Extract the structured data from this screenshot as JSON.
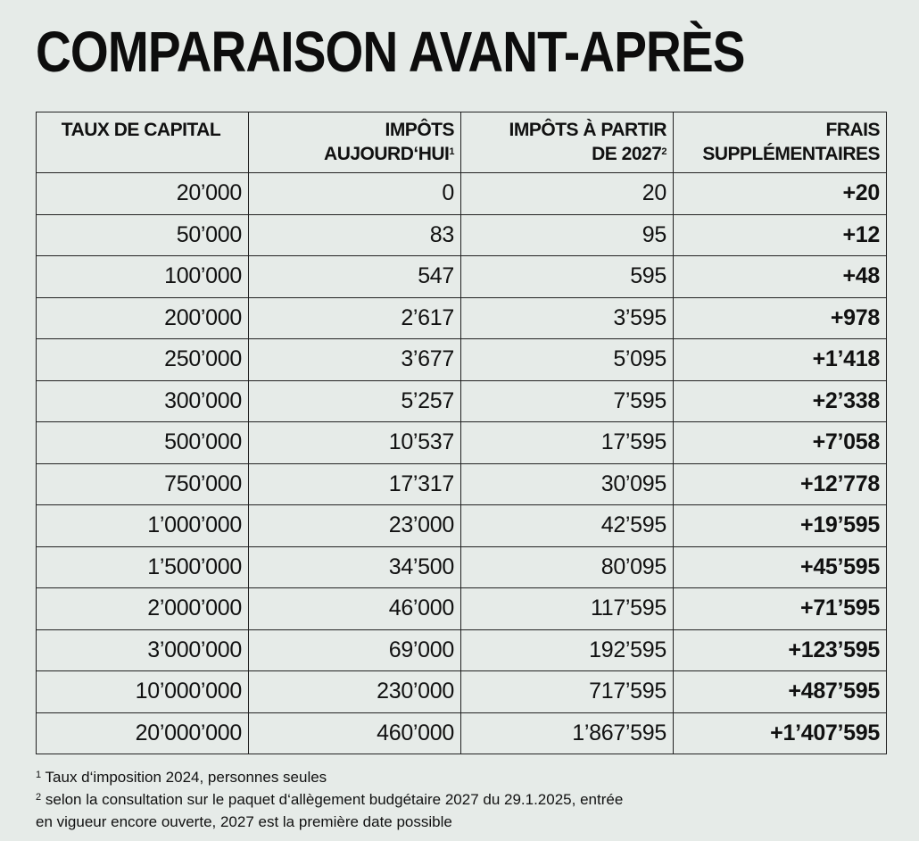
{
  "title": "COMPARAISON AVANT-APRÈS",
  "table": {
    "headers": [
      {
        "line1": "TAUX DE CAPITAL",
        "line2": "",
        "note": ""
      },
      {
        "line1": "IMPÔTS",
        "line2": "AUJOURD‘HUI",
        "note": "1"
      },
      {
        "line1": "IMPÔTS À PARTIR",
        "line2": "DE 2027",
        "note": "2"
      },
      {
        "line1": "FRAIS",
        "line2": "SUPPLÉMENTAIRES",
        "note": ""
      }
    ],
    "rows": [
      [
        "20’000",
        "0",
        "20",
        "+20"
      ],
      [
        "50’000",
        "83",
        "95",
        "+12"
      ],
      [
        "100’000",
        "547",
        "595",
        "+48"
      ],
      [
        "200’000",
        "2’617",
        "3’595",
        "+978"
      ],
      [
        "250’000",
        "3’677",
        "5’095",
        "+1’418"
      ],
      [
        "300’000",
        "5’257",
        "7’595",
        "+2’338"
      ],
      [
        "500’000",
        "10’537",
        "17’595",
        "+7’058"
      ],
      [
        "750’000",
        "17’317",
        "30’095",
        "+12’778"
      ],
      [
        "1’000’000",
        "23’000",
        "42’595",
        "+19’595"
      ],
      [
        "1’500’000",
        "34’500",
        "80’095",
        "+45’595"
      ],
      [
        "2’000’000",
        "46’000",
        "117’595",
        "+71’595"
      ],
      [
        "3’000’000",
        "69’000",
        "192’595",
        "+123’595"
      ],
      [
        "10’000’000",
        "230’000",
        "717’595",
        "+487’595"
      ],
      [
        "20’000’000",
        "460’000",
        "1’867’595",
        "+1’407’595"
      ]
    ]
  },
  "footnotes": [
    {
      "mark": "1",
      "lines": [
        "Taux d‘imposition 2024, personnes seules"
      ]
    },
    {
      "mark": "2",
      "lines": [
        "selon la consultation sur le paquet d‘allègement budgétaire 2027 du 29.1.2025, entrée",
        "en vigueur encore ouverte, 2027 est la première date possible"
      ]
    }
  ],
  "colors": {
    "background": "#e6ebe8",
    "text": "#111111",
    "border": "#222222"
  }
}
